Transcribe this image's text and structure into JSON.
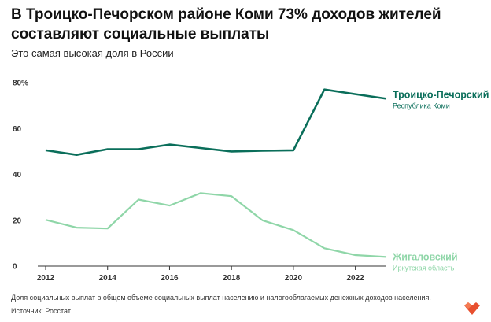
{
  "title": "В Троицко-Печорском районе Коми 73% доходов жителей составляют социальные выплаты",
  "subtitle": "Это самая высокая доля в России",
  "footnote": "Доля социальных выплат в общем объеме социальных выплат населению и налогооблагаемых денежных доходов населения.",
  "source": "Источник: Росстат",
  "colors": {
    "dark": "#0a6e5a",
    "light": "#8fd6a8",
    "axis": "#333333"
  },
  "chart_data": {
    "type": "line",
    "title": "В Троицко-Печорском районе Коми 73% доходов жителей составляют социальные выплаты",
    "subtitle": "Это самая высокая доля в России",
    "xlabel": "",
    "ylabel": "",
    "x": [
      2012,
      2013,
      2014,
      2015,
      2016,
      2017,
      2018,
      2019,
      2020,
      2021,
      2022,
      2023
    ],
    "xticks": [
      "2012",
      "2014",
      "2016",
      "2018",
      "2020",
      "2022"
    ],
    "xtick_values": [
      2012,
      2014,
      2016,
      2018,
      2020,
      2022
    ],
    "yticks": [
      "0",
      "20",
      "40",
      "60",
      "80%"
    ],
    "ytick_values": [
      0,
      20,
      40,
      60,
      80
    ],
    "ylim": [
      0,
      80
    ],
    "xlim": [
      2012,
      2023
    ],
    "grid": false,
    "legend": "direct labels at line ends (right)",
    "series": [
      {
        "name": "Троицко-Печорский",
        "sublabel": "Республика Коми",
        "color": "#0a6e5a",
        "values": [
          50.5,
          48.5,
          51,
          51,
          53,
          51.5,
          50,
          50.3,
          50.5,
          77,
          75,
          73
        ]
      },
      {
        "name": "Жигаловский",
        "sublabel": "Иркутская область",
        "color": "#8fd6a8",
        "values": [
          20.2,
          16.8,
          16.4,
          29,
          26.4,
          31.8,
          30.5,
          20,
          15.7,
          7.8,
          4.8,
          4
        ]
      }
    ]
  }
}
